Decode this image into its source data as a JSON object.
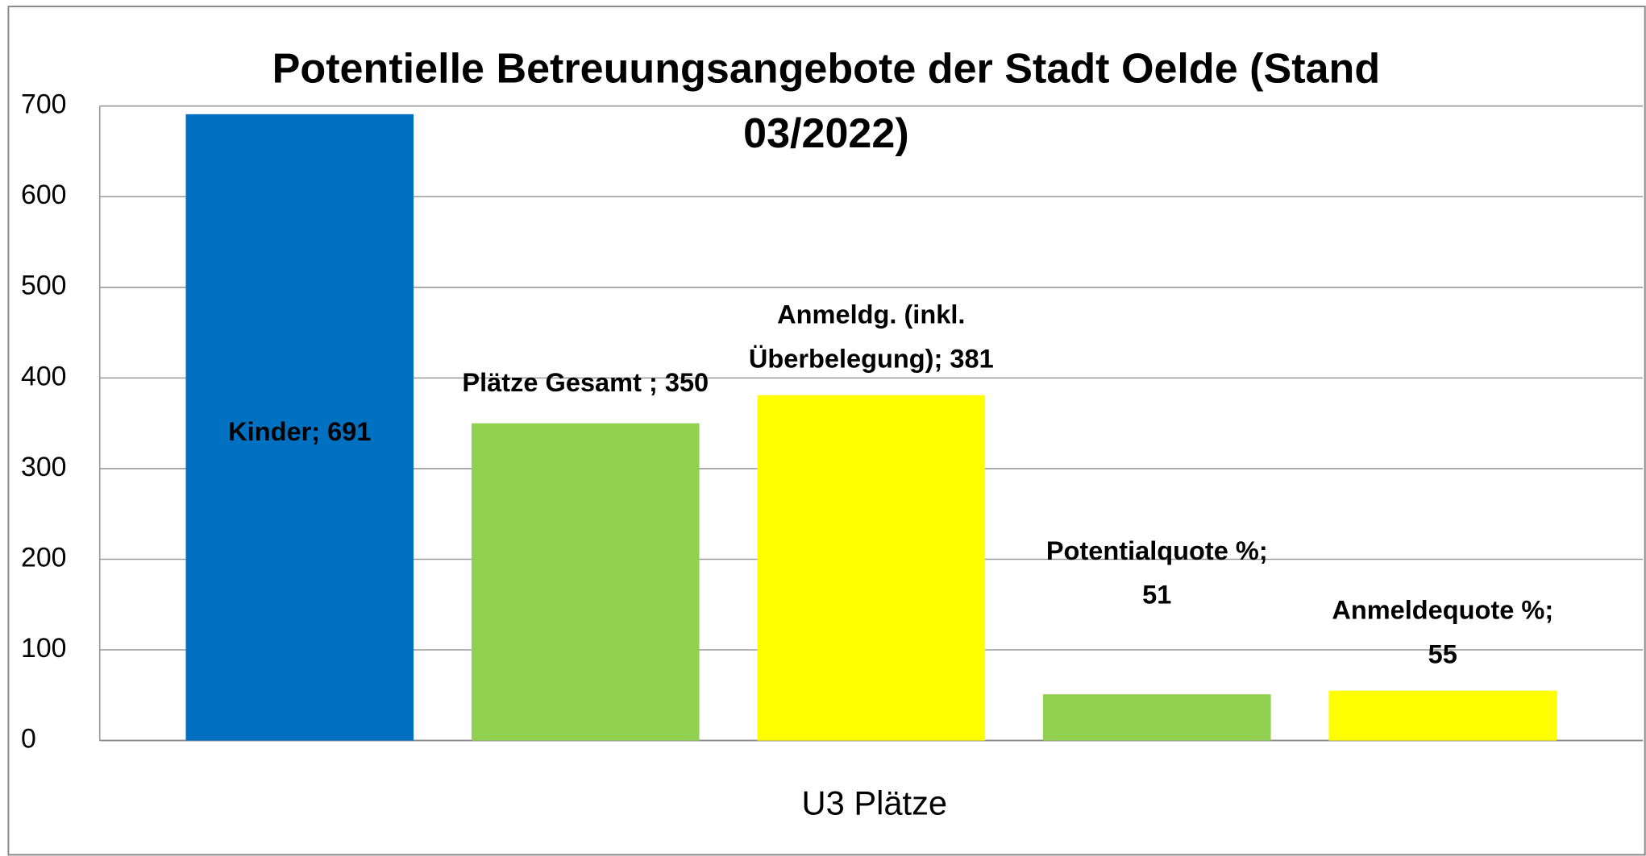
{
  "chart_data": {
    "type": "bar",
    "title": [
      "Potentielle Betreuungsangebote der Stadt Oelde (Stand",
      "03/2022)"
    ],
    "categories": [
      "U3 Plätze"
    ],
    "series": [
      {
        "name": "Kinder",
        "color": "#0070c0",
        "values": [
          691
        ],
        "value_labels": [
          [
            "Kinder; 691"
          ]
        ]
      },
      {
        "name": "Plätze Gesamt",
        "color": "#92d050",
        "values": [
          350
        ],
        "value_labels": [
          [
            "Plätze Gesamt ; 350"
          ]
        ]
      },
      {
        "name": "Anmeldg. (inkl. Überbelegung)",
        "color": "#ffff00",
        "values": [
          381
        ],
        "value_labels": [
          [
            "Anmeldg. (inkl.",
            "Überbelegung); 381"
          ]
        ]
      },
      {
        "name": "Potentialquote %",
        "color": "#92d050",
        "values": [
          51
        ],
        "value_labels": [
          [
            "Potentialquote %;",
            "51"
          ]
        ]
      },
      {
        "name": "Anmeldequote %",
        "color": "#ffff00",
        "values": [
          55
        ],
        "value_labels": [
          [
            "Anmeldequote %;",
            "55"
          ]
        ]
      }
    ],
    "ylim": [
      0,
      700
    ],
    "yticks": [
      0,
      100,
      200,
      300,
      400,
      500,
      600,
      700
    ],
    "grid": true,
    "legend": false
  }
}
